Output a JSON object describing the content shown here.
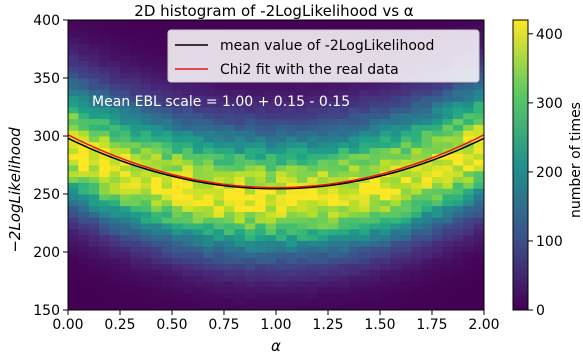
{
  "chart_data": {
    "type": "heatmap",
    "title": "2D histogram of -2LogLikelihood vs α",
    "xlabel": "α",
    "ylabel": "−2LogLikelihood",
    "xlim": [
      0,
      2
    ],
    "ylim": [
      150,
      400
    ],
    "xticks": [
      "0.00",
      "0.25",
      "0.50",
      "0.75",
      "1.00",
      "1.25",
      "1.50",
      "1.75",
      "2.00"
    ],
    "yticks": [
      "150",
      "200",
      "250",
      "300",
      "350",
      "400"
    ],
    "grid": false,
    "histogram": {
      "x_bins": 40,
      "y_bins": 50,
      "ridge_center_at_alpha_1": 245,
      "ridge_center_at_alpha_0_and_2": 290
    },
    "colorbar": {
      "label": "number of times",
      "ticks": [
        "0",
        "100",
        "200",
        "300",
        "400"
      ],
      "range": [
        0,
        420
      ],
      "colormap": "viridis"
    },
    "series": [
      {
        "name": "mean value of -2LogLikelihood",
        "color": "#000000",
        "x": [
          0.0,
          0.25,
          0.5,
          0.75,
          1.0,
          1.25,
          1.5,
          1.75,
          2.0
        ],
        "y": [
          298,
          279,
          265,
          257,
          254.5,
          257,
          265,
          279,
          298
        ]
      },
      {
        "name": "Chi2 fit with the real data",
        "color": "#e8151b",
        "x": [
          0.0,
          0.25,
          0.5,
          0.75,
          1.0,
          1.25,
          1.5,
          1.75,
          2.0
        ],
        "y": [
          301,
          281,
          267,
          258.5,
          255.5,
          258.5,
          267,
          281,
          301
        ]
      }
    ],
    "legend": "top-right",
    "annotation": "Mean EBL scale = 1.00 + 0.15 - 0.15"
  }
}
